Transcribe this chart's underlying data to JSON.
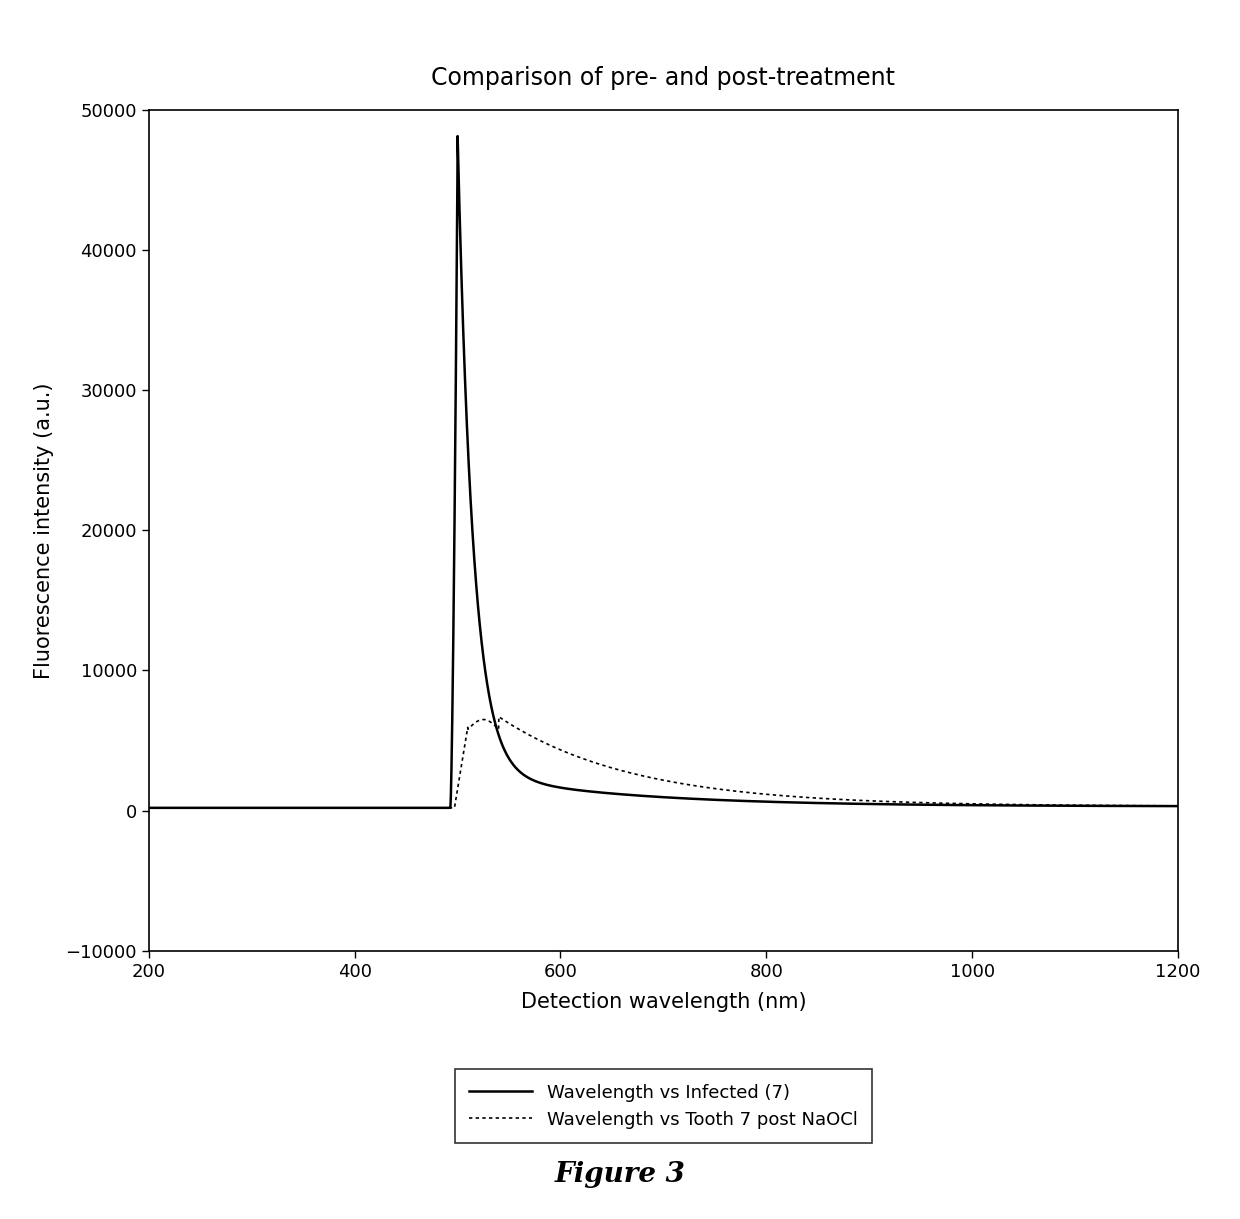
{
  "title": "Comparison of pre- and post-treatment",
  "xlabel": "Detection wavelength (nm)",
  "ylabel": "Fluorescence intensity (a.u.)",
  "xlim": [
    200,
    1200
  ],
  "ylim": [
    -10000,
    50000
  ],
  "xticks": [
    200,
    400,
    600,
    800,
    1000,
    1200
  ],
  "yticks": [
    -10000,
    0,
    10000,
    20000,
    30000,
    40000,
    50000
  ],
  "legend_entries": [
    "Wavelength vs Infected (7)",
    "Wavelength vs Tooth 7 post NaOCl"
  ],
  "figure_caption": "Figure 3",
  "background_color": "#ffffff",
  "line1_color": "#000000",
  "line2_color": "#000000",
  "title_fontsize": 17,
  "axis_label_fontsize": 15,
  "tick_fontsize": 13,
  "legend_fontsize": 13,
  "caption_fontsize": 20
}
